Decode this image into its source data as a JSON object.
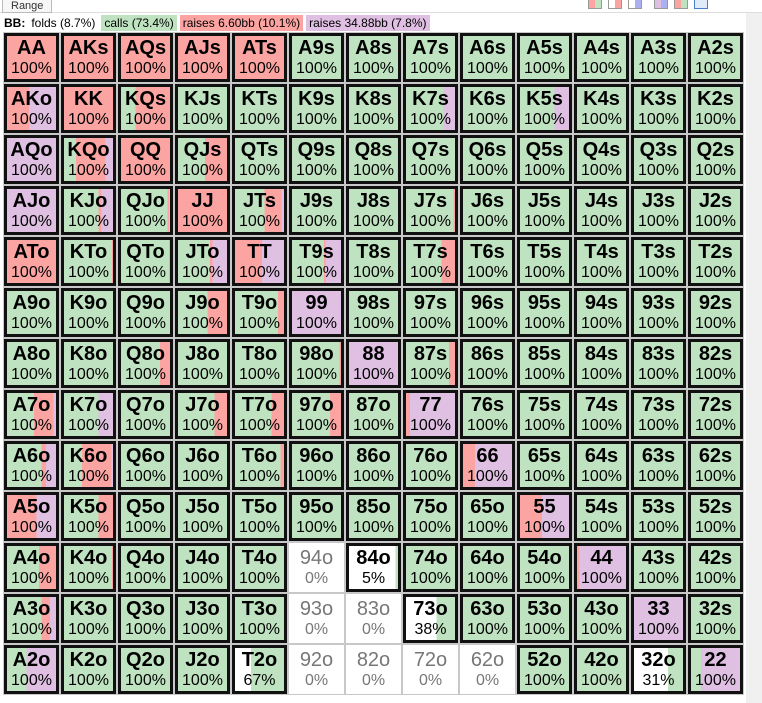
{
  "tab": {
    "label": "Range"
  },
  "legend": {
    "player": "BB:",
    "folds": "folds (8.7%)",
    "calls": "calls (73.4%)",
    "raise1": "raises 6.60bb (10.1%)",
    "raise2": "raises 34.88bb (7.8%)"
  },
  "colors": {
    "fold": "#ffffff",
    "call": "#bfe3c0",
    "raise1": "#fca4a2",
    "raise2": "#dfbfe2"
  },
  "grid": [
    [
      [
        "AA",
        "100%",
        0,
        100,
        0
      ],
      [
        "AKs",
        "100%",
        0,
        100,
        0
      ],
      [
        "AQs",
        "100%",
        0,
        100,
        0
      ],
      [
        "AJs",
        "100%",
        0,
        100,
        0
      ],
      [
        "ATs",
        "100%",
        0,
        100,
        0
      ],
      [
        "A9s",
        "100%",
        100,
        0,
        0
      ],
      [
        "A8s",
        "100%",
        100,
        0,
        0
      ],
      [
        "A7s",
        "100%",
        100,
        0,
        0
      ],
      [
        "A6s",
        "100%",
        100,
        0,
        0
      ],
      [
        "A5s",
        "100%",
        100,
        0,
        0
      ],
      [
        "A4s",
        "100%",
        100,
        0,
        0
      ],
      [
        "A3s",
        "100%",
        100,
        0,
        0
      ],
      [
        "A2s",
        "100%",
        100,
        0,
        0
      ]
    ],
    [
      [
        "AKo",
        "100%",
        0,
        45,
        55
      ],
      [
        "KK",
        "100%",
        0,
        100,
        0
      ],
      [
        "KQs",
        "100%",
        30,
        70,
        0
      ],
      [
        "KJs",
        "100%",
        100,
        0,
        0
      ],
      [
        "KTs",
        "100%",
        100,
        0,
        0
      ],
      [
        "K9s",
        "100%",
        100,
        0,
        0
      ],
      [
        "K8s",
        "100%",
        100,
        0,
        0
      ],
      [
        "K7s",
        "100%",
        77,
        0,
        23
      ],
      [
        "K6s",
        "100%",
        100,
        0,
        0
      ],
      [
        "K5s",
        "100%",
        70,
        0,
        30
      ],
      [
        "K4s",
        "100%",
        100,
        0,
        0
      ],
      [
        "K3s",
        "100%",
        100,
        0,
        0
      ],
      [
        "K2s",
        "100%",
        100,
        0,
        0
      ]
    ],
    [
      [
        "AQo",
        "100%",
        0,
        0,
        100
      ],
      [
        "KQo",
        "100%",
        25,
        60,
        15
      ],
      [
        "QQ",
        "100%",
        0,
        100,
        0
      ],
      [
        "QJs",
        "100%",
        55,
        45,
        0
      ],
      [
        "QTs",
        "100%",
        100,
        0,
        0
      ],
      [
        "Q9s",
        "100%",
        100,
        0,
        0
      ],
      [
        "Q8s",
        "100%",
        98,
        0,
        2
      ],
      [
        "Q7s",
        "100%",
        100,
        0,
        0
      ],
      [
        "Q6s",
        "100%",
        100,
        0,
        0
      ],
      [
        "Q5s",
        "100%",
        100,
        0,
        0
      ],
      [
        "Q4s",
        "100%",
        100,
        0,
        0
      ],
      [
        "Q3s",
        "100%",
        100,
        0,
        0
      ],
      [
        "Q2s",
        "100%",
        100,
        0,
        0
      ]
    ],
    [
      [
        "AJo",
        "100%",
        0,
        0,
        100
      ],
      [
        "KJo",
        "100%",
        70,
        7,
        23
      ],
      [
        "QJo",
        "100%",
        95,
        3,
        2
      ],
      [
        "JJ",
        "100%",
        0,
        100,
        0
      ],
      [
        "JTs",
        "100%",
        60,
        35,
        5
      ],
      [
        "J9s",
        "100%",
        100,
        0,
        0
      ],
      [
        "J8s",
        "100%",
        100,
        0,
        0
      ],
      [
        "J7s",
        "100%",
        97,
        3,
        0
      ],
      [
        "J6s",
        "100%",
        100,
        0,
        0
      ],
      [
        "J5s",
        "100%",
        100,
        0,
        0
      ],
      [
        "J4s",
        "100%",
        100,
        0,
        0
      ],
      [
        "J3s",
        "100%",
        100,
        0,
        0
      ],
      [
        "J2s",
        "100%",
        100,
        0,
        0
      ]
    ],
    [
      [
        "ATo",
        "100%",
        0,
        100,
        0
      ],
      [
        "KTo",
        "100%",
        98,
        2,
        0
      ],
      [
        "QTo",
        "100%",
        98,
        2,
        0
      ],
      [
        "JTo",
        "100%",
        65,
        5,
        30
      ],
      [
        "TT",
        "100%",
        0,
        55,
        45
      ],
      [
        "T9s",
        "100%",
        65,
        3,
        32
      ],
      [
        "T8s",
        "100%",
        100,
        0,
        0
      ],
      [
        "T7s",
        "100%",
        72,
        28,
        0
      ],
      [
        "T6s",
        "100%",
        100,
        0,
        0
      ],
      [
        "T5s",
        "100%",
        100,
        0,
        0
      ],
      [
        "T4s",
        "100%",
        100,
        0,
        0
      ],
      [
        "T3s",
        "100%",
        100,
        0,
        0
      ],
      [
        "T2s",
        "100%",
        100,
        0,
        0
      ]
    ],
    [
      [
        "A9o",
        "100%",
        100,
        0,
        0
      ],
      [
        "K9o",
        "100%",
        100,
        0,
        0
      ],
      [
        "Q9o",
        "100%",
        100,
        0,
        0
      ],
      [
        "J9o",
        "100%",
        60,
        40,
        0
      ],
      [
        "T9o",
        "100%",
        88,
        12,
        0
      ],
      [
        "99",
        "100%",
        0,
        0,
        100
      ],
      [
        "98s",
        "100%",
        100,
        0,
        0
      ],
      [
        "97s",
        "100%",
        100,
        0,
        0
      ],
      [
        "96s",
        "100%",
        100,
        0,
        0
      ],
      [
        "95s",
        "100%",
        100,
        0,
        0
      ],
      [
        "94s",
        "100%",
        100,
        0,
        0
      ],
      [
        "93s",
        "100%",
        100,
        0,
        0
      ],
      [
        "92s",
        "100%",
        100,
        0,
        0
      ]
    ],
    [
      [
        "A8o",
        "100%",
        100,
        0,
        0
      ],
      [
        "K8o",
        "100%",
        100,
        0,
        0
      ],
      [
        "Q8o",
        "100%",
        80,
        20,
        0
      ],
      [
        "J8o",
        "100%",
        100,
        0,
        0
      ],
      [
        "T8o",
        "100%",
        100,
        0,
        0
      ],
      [
        "98o",
        "100%",
        97,
        3,
        0
      ],
      [
        "88",
        "100%",
        0,
        0,
        100
      ],
      [
        "87s",
        "100%",
        88,
        12,
        0
      ],
      [
        "86s",
        "100%",
        100,
        0,
        0
      ],
      [
        "85s",
        "100%",
        100,
        0,
        0
      ],
      [
        "84s",
        "100%",
        100,
        0,
        0
      ],
      [
        "83s",
        "100%",
        100,
        0,
        0
      ],
      [
        "82s",
        "100%",
        100,
        0,
        0
      ]
    ],
    [
      [
        "A7o",
        "100%",
        55,
        40,
        5
      ],
      [
        "K7o",
        "100%",
        70,
        0,
        30
      ],
      [
        "Q7o",
        "100%",
        100,
        0,
        0
      ],
      [
        "J7o",
        "100%",
        75,
        25,
        0
      ],
      [
        "T7o",
        "100%",
        75,
        25,
        0
      ],
      [
        "97o",
        "100%",
        78,
        22,
        0
      ],
      [
        "87o",
        "100%",
        100,
        0,
        0
      ],
      [
        "77",
        "100%",
        0,
        8,
        92
      ],
      [
        "76s",
        "100%",
        100,
        0,
        0
      ],
      [
        "75s",
        "100%",
        100,
        0,
        0
      ],
      [
        "74s",
        "100%",
        100,
        0,
        0
      ],
      [
        "73s",
        "100%",
        100,
        0,
        0
      ],
      [
        "72s",
        "100%",
        100,
        0,
        0
      ]
    ],
    [
      [
        "A6o",
        "100%",
        70,
        10,
        20
      ],
      [
        "K6o",
        "100%",
        37,
        60,
        3
      ],
      [
        "Q6o",
        "100%",
        100,
        0,
        0
      ],
      [
        "J6o",
        "100%",
        100,
        0,
        0
      ],
      [
        "T6o",
        "100%",
        93,
        7,
        0
      ],
      [
        "96o",
        "100%",
        100,
        0,
        0
      ],
      [
        "86o",
        "100%",
        100,
        0,
        0
      ],
      [
        "76o",
        "100%",
        100,
        0,
        0
      ],
      [
        "66",
        "100%",
        0,
        25,
        75
      ],
      [
        "65s",
        "100%",
        100,
        0,
        0
      ],
      [
        "64s",
        "100%",
        100,
        0,
        0
      ],
      [
        "63s",
        "100%",
        100,
        0,
        0
      ],
      [
        "62s",
        "100%",
        100,
        0,
        0
      ]
    ],
    [
      [
        "A5o",
        "100%",
        0,
        60,
        40
      ],
      [
        "K5o",
        "100%",
        70,
        30,
        0
      ],
      [
        "Q5o",
        "100%",
        100,
        0,
        0
      ],
      [
        "J5o",
        "100%",
        100,
        0,
        0
      ],
      [
        "T5o",
        "100%",
        100,
        0,
        0
      ],
      [
        "95o",
        "100%",
        100,
        0,
        0
      ],
      [
        "85o",
        "100%",
        100,
        0,
        0
      ],
      [
        "75o",
        "100%",
        100,
        0,
        0
      ],
      [
        "65o",
        "100%",
        100,
        0,
        0
      ],
      [
        "55",
        "100%",
        0,
        45,
        55
      ],
      [
        "54s",
        "100%",
        100,
        0,
        0
      ],
      [
        "53s",
        "100%",
        100,
        0,
        0
      ],
      [
        "52s",
        "100%",
        100,
        0,
        0
      ]
    ],
    [
      [
        "A4o",
        "100%",
        65,
        35,
        0
      ],
      [
        "K4o",
        "100%",
        98,
        2,
        0
      ],
      [
        "Q4o",
        "100%",
        100,
        0,
        0
      ],
      [
        "J4o",
        "100%",
        100,
        0,
        0
      ],
      [
        "T4o",
        "100%",
        100,
        0,
        0
      ],
      [
        "94o",
        "0%",
        0,
        0,
        0
      ],
      [
        "84o",
        "5%",
        5,
        0,
        0
      ],
      [
        "74o",
        "100%",
        100,
        0,
        0
      ],
      [
        "64o",
        "100%",
        100,
        0,
        0
      ],
      [
        "54o",
        "100%",
        100,
        0,
        0
      ],
      [
        "44",
        "100%",
        0,
        5,
        95
      ],
      [
        "43s",
        "100%",
        100,
        0,
        0
      ],
      [
        "42s",
        "100%",
        100,
        0,
        0
      ]
    ],
    [
      [
        "A3o",
        "100%",
        70,
        18,
        12
      ],
      [
        "K3o",
        "100%",
        100,
        0,
        0
      ],
      [
        "Q3o",
        "100%",
        100,
        0,
        0
      ],
      [
        "J3o",
        "100%",
        100,
        0,
        0
      ],
      [
        "T3o",
        "100%",
        100,
        0,
        0
      ],
      [
        "93o",
        "0%",
        0,
        0,
        0
      ],
      [
        "83o",
        "0%",
        0,
        0,
        0
      ],
      [
        "73o",
        "38%",
        38,
        0,
        0
      ],
      [
        "63o",
        "100%",
        100,
        0,
        0
      ],
      [
        "53o",
        "100%",
        100,
        0,
        0
      ],
      [
        "43o",
        "100%",
        100,
        0,
        0
      ],
      [
        "33",
        "100%",
        0,
        0,
        100
      ],
      [
        "32s",
        "100%",
        100,
        0,
        0
      ]
    ],
    [
      [
        "A2o",
        "100%",
        40,
        0,
        60
      ],
      [
        "K2o",
        "100%",
        100,
        0,
        0
      ],
      [
        "Q2o",
        "100%",
        100,
        0,
        0
      ],
      [
        "J2o",
        "100%",
        100,
        0,
        0
      ],
      [
        "T2o",
        "67%",
        67,
        0,
        0
      ],
      [
        "92o",
        "0%",
        0,
        0,
        0
      ],
      [
        "82o",
        "0%",
        0,
        0,
        0
      ],
      [
        "72o",
        "0%",
        0,
        0,
        0
      ],
      [
        "62o",
        "0%",
        0,
        0,
        0
      ],
      [
        "52o",
        "100%",
        100,
        0,
        0
      ],
      [
        "42o",
        "100%",
        100,
        0,
        0
      ],
      [
        "32o",
        "31%",
        31,
        0,
        0
      ],
      [
        "22",
        "100%",
        20,
        0,
        80
      ]
    ]
  ]
}
